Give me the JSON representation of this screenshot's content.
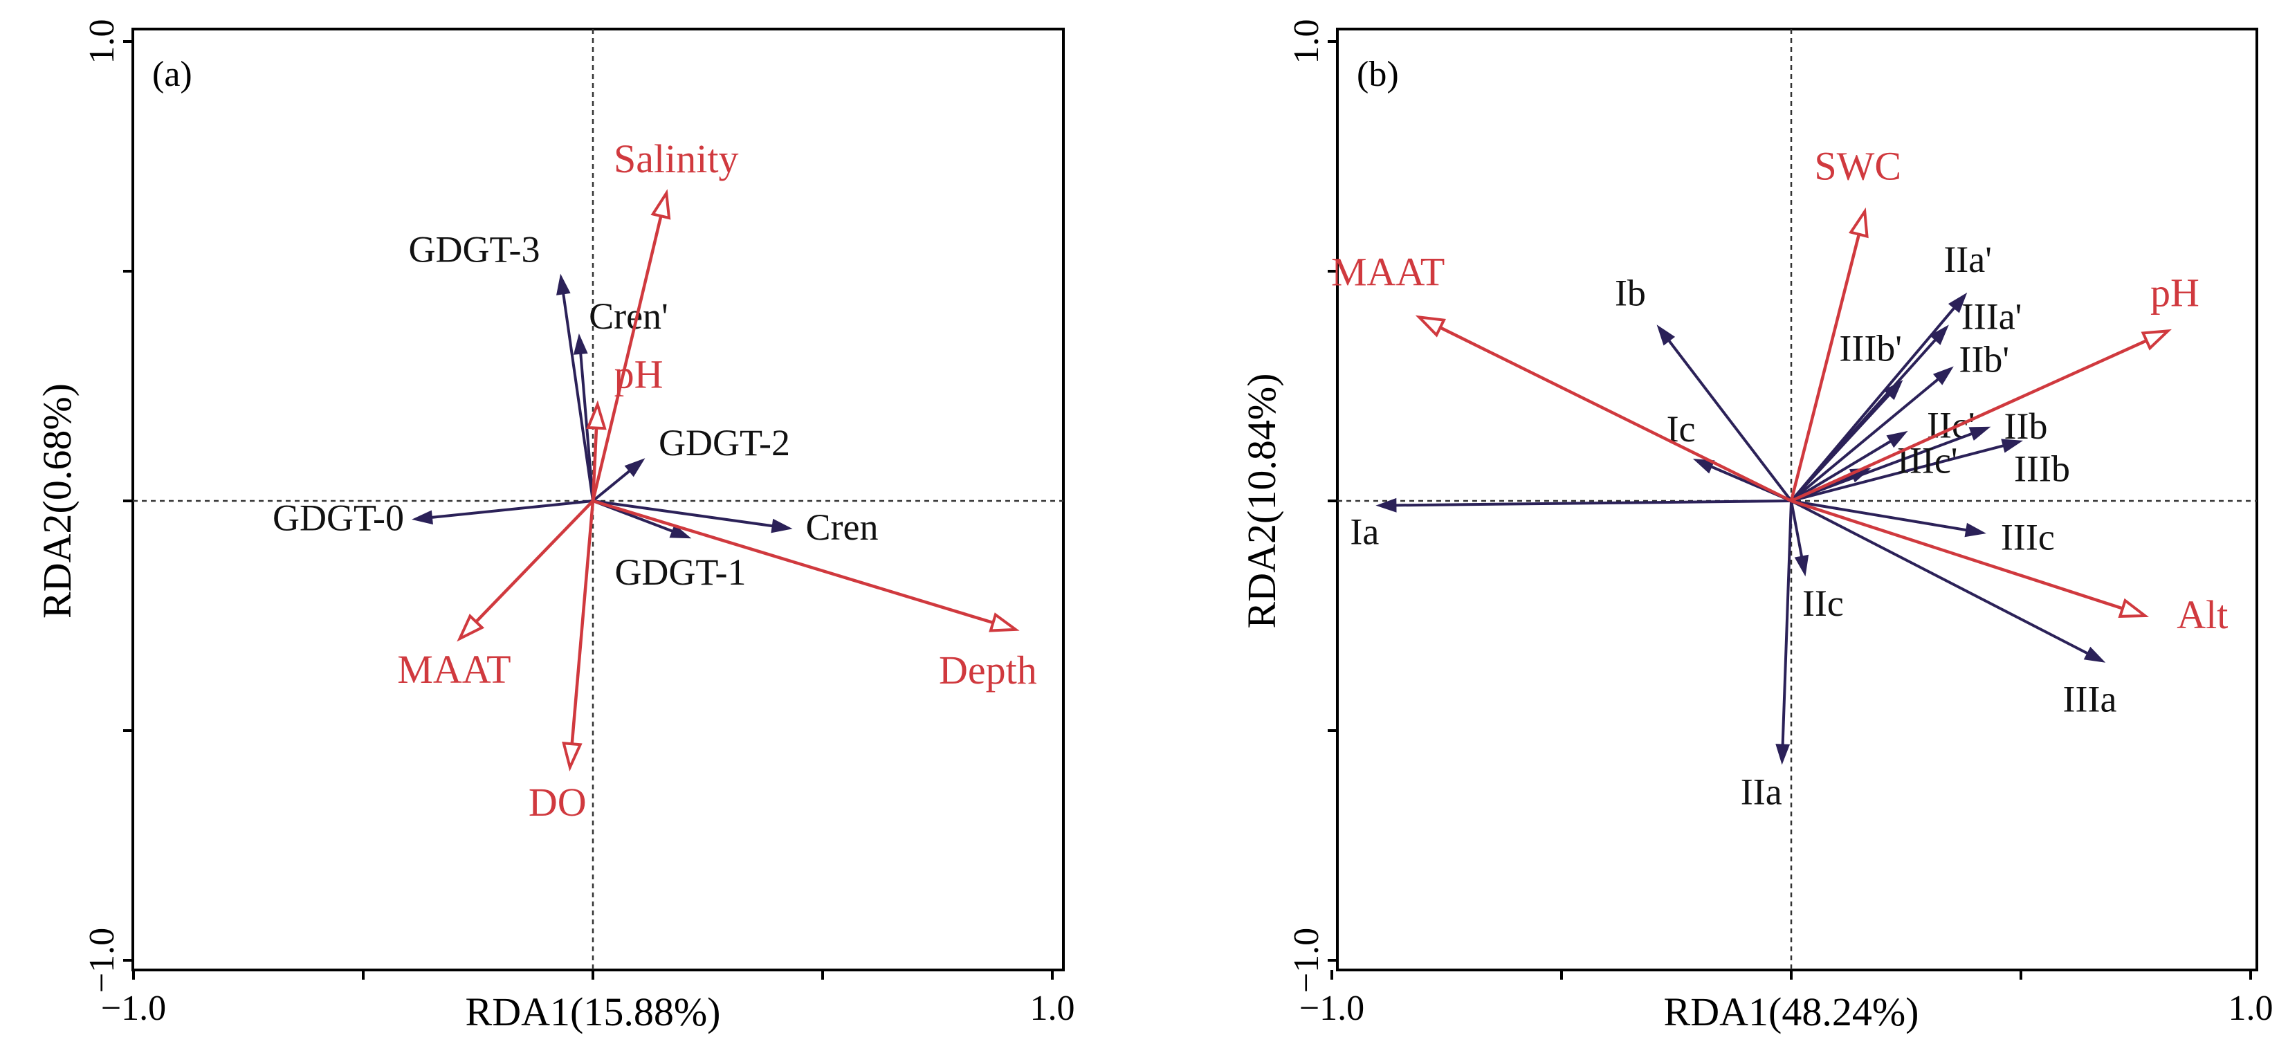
{
  "colors": {
    "variable_arrow": "#2b2158",
    "env_arrow": "#d0393e",
    "axis": "#000000",
    "zero_line": "#333333"
  },
  "chart_data": [
    {
      "type": "scatter",
      "panel_label": "(a)",
      "xlabel": "RDA1(15.88%)",
      "ylabel": "RDA2(0.68%)",
      "xlim": [
        -1.0,
        1.0
      ],
      "ylim": [
        -1.0,
        1.0
      ],
      "x_ticks": [
        "−1.0",
        "1.0"
      ],
      "y_ticks": [
        "1.0",
        "−1.0"
      ],
      "variables": [
        {
          "label": "GDGT-3",
          "x": -0.07,
          "y": 0.49
        },
        {
          "label": "Cren'",
          "x": -0.03,
          "y": 0.36
        },
        {
          "label": "GDGT-2",
          "x": 0.11,
          "y": 0.09
        },
        {
          "label": "GDGT-0",
          "x": -0.39,
          "y": -0.04
        },
        {
          "label": "Cren",
          "x": 0.43,
          "y": -0.06
        },
        {
          "label": "GDGT-1",
          "x": 0.21,
          "y": -0.08
        }
      ],
      "environment": [
        {
          "label": "Salinity",
          "x": 0.16,
          "y": 0.67
        },
        {
          "label": "pH",
          "x": 0.01,
          "y": 0.21
        },
        {
          "label": "MAAT",
          "x": -0.29,
          "y": -0.3
        },
        {
          "label": "DO",
          "x": -0.05,
          "y": -0.58
        },
        {
          "label": "Depth",
          "x": 0.92,
          "y": -0.28
        }
      ]
    },
    {
      "type": "scatter",
      "panel_label": "(b)",
      "xlabel": "RDA1(48.24%)",
      "ylabel": "RDA2(10.84%)",
      "xlim": [
        -1.0,
        1.0
      ],
      "ylim": [
        -1.0,
        1.0
      ],
      "x_ticks": [
        "−1.0",
        "1.0"
      ],
      "y_ticks": [
        "1.0",
        "−1.0"
      ],
      "variables": [
        {
          "label": "Ia",
          "x": -0.9,
          "y": -0.01
        },
        {
          "label": "Ib",
          "x": -0.29,
          "y": 0.38
        },
        {
          "label": "Ic",
          "x": -0.21,
          "y": 0.09
        },
        {
          "label": "IIa'",
          "x": 0.38,
          "y": 0.45
        },
        {
          "label": "IIIa'",
          "x": 0.34,
          "y": 0.38
        },
        {
          "label": "IIb'",
          "x": 0.35,
          "y": 0.29
        },
        {
          "label": "IIIb'",
          "x": 0.24,
          "y": 0.26
        },
        {
          "label": "IIc'",
          "x": 0.25,
          "y": 0.15
        },
        {
          "label": "IIb",
          "x": 0.43,
          "y": 0.16
        },
        {
          "label": "IIIb",
          "x": 0.5,
          "y": 0.13
        },
        {
          "label": "IIIc'",
          "x": 0.17,
          "y": 0.07
        },
        {
          "label": "IIIc",
          "x": 0.42,
          "y": -0.07
        },
        {
          "label": "IIc",
          "x": 0.03,
          "y": -0.16
        },
        {
          "label": "IIa",
          "x": -0.02,
          "y": -0.57
        },
        {
          "label": "IIIa",
          "x": 0.68,
          "y": -0.35
        }
      ],
      "environment": [
        {
          "label": "MAAT",
          "x": -0.81,
          "y": 0.4
        },
        {
          "label": "SWC",
          "x": 0.16,
          "y": 0.63
        },
        {
          "label": "pH",
          "x": 0.82,
          "y": 0.37
        },
        {
          "label": "Alt",
          "x": 0.77,
          "y": -0.25
        }
      ]
    }
  ]
}
